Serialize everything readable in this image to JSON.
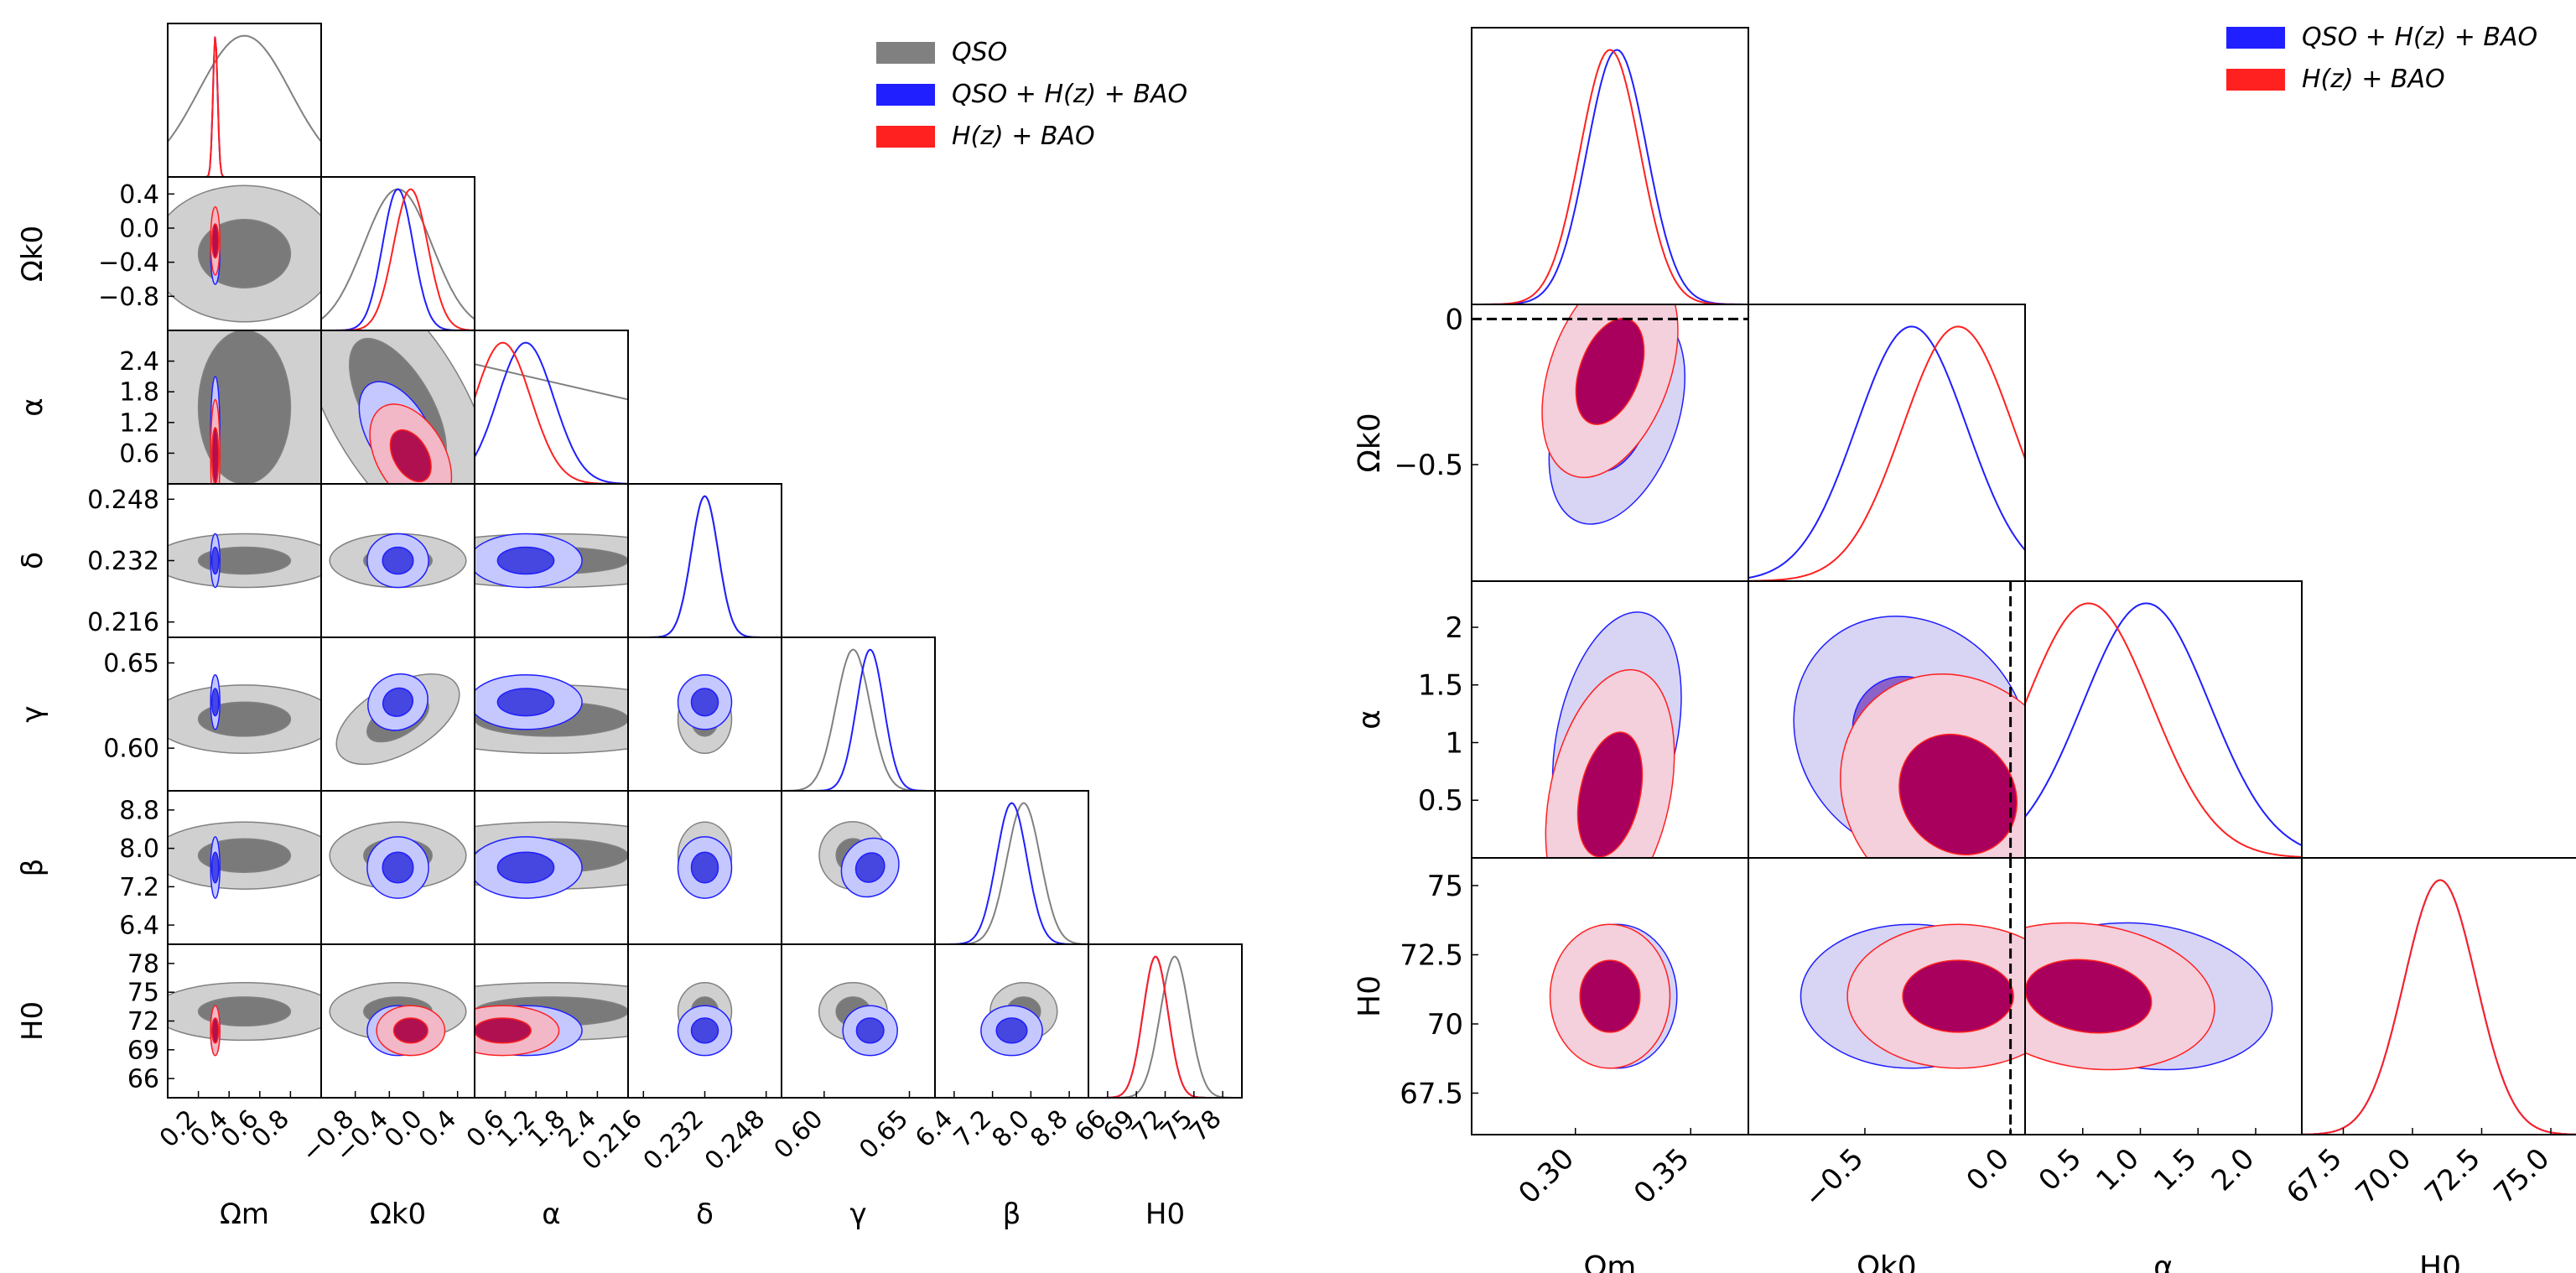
{
  "colors": {
    "qso": "#808080",
    "combined": "#1f1fff",
    "hzbao": "#ff2020",
    "frame": "#000000"
  },
  "chart_data": [
    {
      "type": "corner",
      "title": "",
      "params": [
        {
          "key": "Om",
          "label": "Ωm",
          "range": [
            0.0,
            1.0
          ],
          "ticks": [
            "0.2",
            "0.4",
            "0.6",
            "0.8"
          ]
        },
        {
          "key": "Ok0",
          "label": "Ωk0",
          "range": [
            -1.2,
            0.6
          ],
          "ticks": [
            "−0.8",
            "−0.4",
            "0.0",
            "0.4"
          ]
        },
        {
          "key": "alpha",
          "label": "α",
          "range": [
            0.0,
            3.0
          ],
          "ticks": [
            "0.6",
            "1.2",
            "1.8",
            "2.4"
          ]
        },
        {
          "key": "delta",
          "label": "δ",
          "range": [
            0.212,
            0.252
          ],
          "ticks": [
            "0.216",
            "0.232",
            "0.248"
          ]
        },
        {
          "key": "gamma",
          "label": "γ",
          "range": [
            0.575,
            0.665
          ],
          "ticks": [
            "0.60",
            "0.65"
          ]
        },
        {
          "key": "beta",
          "label": "β",
          "range": [
            6.0,
            9.2
          ],
          "ticks": [
            "6.4",
            "7.2",
            "8.0",
            "8.8"
          ]
        },
        {
          "key": "H0",
          "label": "H0",
          "range": [
            64.0,
            80.0
          ],
          "ticks": [
            "66",
            "69",
            "72",
            "75",
            "78"
          ]
        }
      ],
      "legend": [
        "QSO",
        "QSO + H(z) + BAO",
        "H(z) + BAO"
      ],
      "series": [
        {
          "name": "QSO",
          "mean": [
            0.5,
            -0.3,
            1.5,
            0.232,
            0.617,
            7.85,
            73.0
          ],
          "sigma": [
            0.3,
            0.4,
            1.5,
            0.0035,
            0.01,
            0.35,
            1.5
          ],
          "max_in_range": [
            0,
            2
          ]
        },
        {
          "name": "QSO + H(z) + BAO",
          "mean": [
            0.31,
            -0.3,
            1.0,
            0.232,
            0.627,
            7.6,
            71.0
          ],
          "sigma": [
            0.015,
            0.18,
            0.55,
            0.0035,
            0.008,
            0.32,
            1.3
          ],
          "max_in_range": []
        },
        {
          "name": "H(z) + BAO",
          "mean": [
            0.31,
            -0.15,
            0.55,
            null,
            null,
            null,
            71.0
          ],
          "sigma": [
            0.015,
            0.2,
            0.55,
            null,
            null,
            null,
            1.3
          ],
          "max_in_range": []
        }
      ]
    },
    {
      "type": "corner",
      "title": "",
      "params": [
        {
          "key": "Om",
          "label": "Ωm",
          "range": [
            0.255,
            0.375
          ],
          "ticks": [
            "0.30",
            "0.35"
          ]
        },
        {
          "key": "Ok0",
          "label": "Ωk0",
          "range": [
            -0.9,
            0.05
          ],
          "ticks": [
            "−0.5",
            "0.0"
          ]
        },
        {
          "key": "alpha",
          "label": "α",
          "range": [
            0.0,
            2.4
          ],
          "ticks": [
            "0.5",
            "1.0",
            "1.5",
            "2.0"
          ]
        },
        {
          "key": "H0",
          "label": "H0",
          "range": [
            66.0,
            76.0
          ],
          "ticks": [
            "67.5",
            "70.0",
            "72.5",
            "75.0"
          ]
        }
      ],
      "ytick_labels": {
        "Ok0": [
          "0",
          "−0.5"
        ],
        "alpha": [
          "2",
          "1.5",
          "1",
          "0.5"
        ],
        "H0": [
          "75",
          "72.5",
          "70",
          "67.5"
        ]
      },
      "legend": [
        "QSO + H(z) + BAO",
        "H(z) + BAO"
      ],
      "series": [
        {
          "name": "QSO + H(z) + BAO",
          "mean": [
            0.318,
            -0.34,
            1.05,
            71.0
          ],
          "sigma": [
            0.013,
            0.19,
            0.55,
            1.3
          ]
        },
        {
          "name": "H(z) + BAO",
          "mean": [
            0.315,
            -0.18,
            0.55,
            71.0
          ],
          "sigma": [
            0.013,
            0.19,
            0.55,
            1.3
          ]
        }
      ],
      "reference_lines": [
        {
          "param": "Ok0",
          "value": 0.0,
          "style": "dashed"
        }
      ]
    }
  ]
}
